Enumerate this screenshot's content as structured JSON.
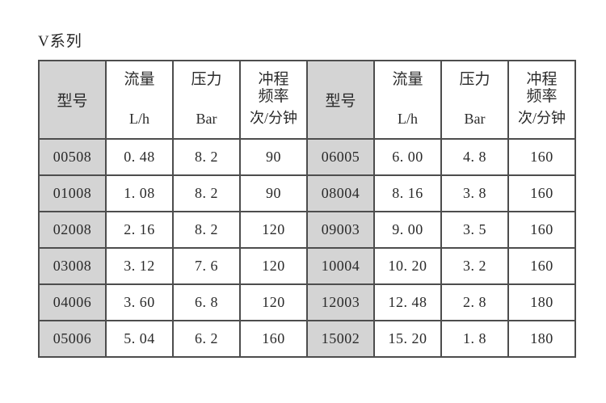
{
  "page": {
    "title": "V系列"
  },
  "table": {
    "header": {
      "model": "型号",
      "flow": "流量",
      "flow_unit": "L/h",
      "pressure": "压力",
      "pressure_unit": "Bar",
      "stroke_line1": "冲程",
      "stroke_line2": "频率",
      "stroke_unit": "次/分钟"
    },
    "left_rows": [
      {
        "model": "00508",
        "flow": "0. 48",
        "pressure": "8. 2",
        "stroke": "90"
      },
      {
        "model": "01008",
        "flow": "1. 08",
        "pressure": "8. 2",
        "stroke": "90"
      },
      {
        "model": "02008",
        "flow": "2. 16",
        "pressure": "8. 2",
        "stroke": "120"
      },
      {
        "model": "03008",
        "flow": "3. 12",
        "pressure": "7. 6",
        "stroke": "120"
      },
      {
        "model": "04006",
        "flow": "3. 60",
        "pressure": "6. 8",
        "stroke": "120"
      },
      {
        "model": "05006",
        "flow": "5. 04",
        "pressure": "6. 2",
        "stroke": "160"
      }
    ],
    "right_rows": [
      {
        "model": "06005",
        "flow": "6. 00",
        "pressure": "4. 8",
        "stroke": "160"
      },
      {
        "model": "08004",
        "flow": "8. 16",
        "pressure": "3. 8",
        "stroke": "160"
      },
      {
        "model": "09003",
        "flow": "9. 00",
        "pressure": "3. 5",
        "stroke": "160"
      },
      {
        "model": "10004",
        "flow": "10. 20",
        "pressure": "3. 2",
        "stroke": "160"
      },
      {
        "model": "12003",
        "flow": "12. 48",
        "pressure": "2. 8",
        "stroke": "180"
      },
      {
        "model": "15002",
        "flow": "15. 20",
        "pressure": "1. 8",
        "stroke": "180"
      }
    ],
    "colors": {
      "model_column_bg": "#d4d4d4",
      "border": "#4d4d4d",
      "text": "#2a2a2a",
      "background": "#ffffff"
    }
  }
}
